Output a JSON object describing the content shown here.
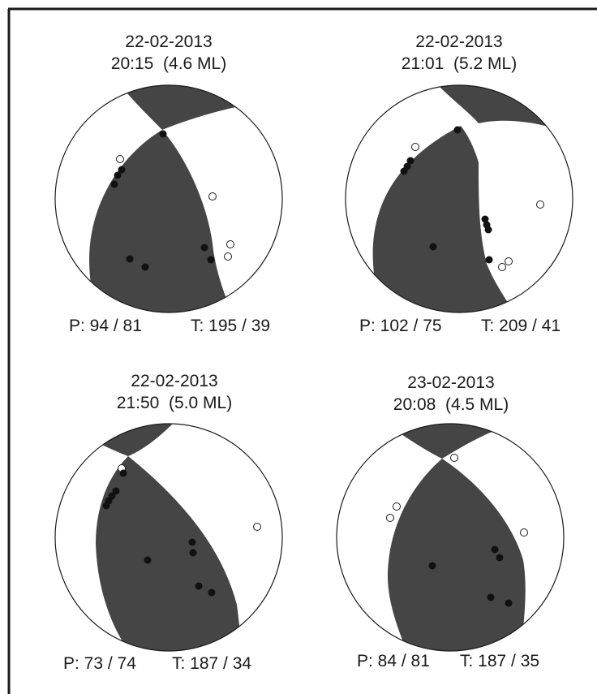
{
  "mechanisms": [
    {
      "date": "22-02-2013",
      "time_mag": "20:15  (4.6 ML)",
      "p_axis": "P: 94 / 81",
      "t_axis": "T: 195 / 39"
    },
    {
      "date": "22-02-2013",
      "time_mag": "21:01  (5.2 ML)",
      "p_axis": "P: 102 / 75",
      "t_axis": "T: 209 / 41"
    },
    {
      "date": "22-02-2013",
      "time_mag": "21:50  (5.0 ML)",
      "p_axis": "P: 73 / 74",
      "t_axis": "T: 187 / 34"
    },
    {
      "date": "23-02-2013",
      "time_mag": "20:08  (4.5 ML)",
      "p_axis": "P: 84 / 81",
      "t_axis": "T: 187 / 35"
    }
  ],
  "colors": {
    "compression": "#454545",
    "dilatation": "#ffffff",
    "outline": "#1a1a1a",
    "frame": "#1a1a1a"
  }
}
